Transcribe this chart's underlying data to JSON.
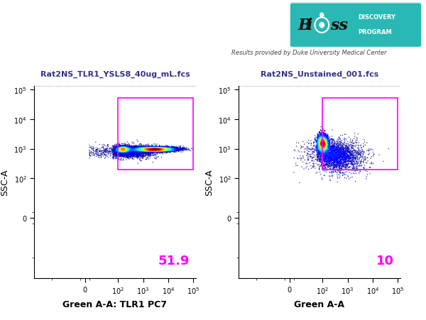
{
  "background_color": "#ffffff",
  "results_text": "Results provided by Duke University Medical Center",
  "plot1_title": "Rat2NS_TLR1_YSLS8_40ug_mL.fcs",
  "plot2_title": "Rat2NS_Unstained_001.fcs",
  "plot1_xlabel": "Green A-A: TLR1 PC7",
  "plot2_xlabel": "Green A-A",
  "ylabel": "SSC-A",
  "plot1_percentage": "51.9",
  "plot2_percentage": "10",
  "gate_color": "#ff00ff",
  "gate_linewidth": 1.2,
  "logo_bg_color": "#2ab8b4",
  "logo_dark_text": "#1a2020",
  "percentage_color": "#ff00ff",
  "percentage_fontsize": 13,
  "title_color": "#333388",
  "title_fontsize": 8,
  "axis_label_color": "#000000",
  "tick_fontsize": 7,
  "xlabel_fontsize": 9,
  "ylabel_fontsize": 9,
  "results_fontsize": 7,
  "xtick_vals": [
    0,
    100,
    1000,
    10000,
    100000
  ],
  "ytick_vals": [
    0,
    100,
    1000,
    10000,
    100000
  ]
}
